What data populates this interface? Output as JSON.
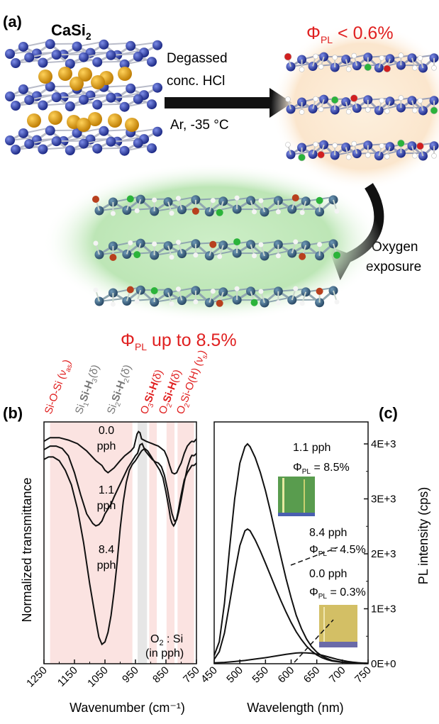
{
  "panel_a": {
    "label": "(a)",
    "compound": "CaSi",
    "compound_sub": "2",
    "arrow1_lines": [
      "Degassed",
      "conc. HCl",
      "Ar, -35 °C"
    ],
    "phi_top_symbol": "Φ",
    "phi_top_sub": "PL",
    "phi_top_text": " < 0.6%",
    "arrow2_lines": [
      "Oxygen",
      "exposure"
    ],
    "phi_bottom_symbol": "Φ",
    "phi_bottom_sub": "PL",
    "phi_bottom_text": " up to 8.5%",
    "colors": {
      "silicon": "#2a3a9a",
      "calcium": "#e8a218",
      "oxygen": "#d11f1f",
      "chlorine": "#2bb33a",
      "hydrogen": "#e0e0e0",
      "red_text": "#e02020",
      "green_glow": "#b9e3b2",
      "peach_glow": "#fbe7cf"
    }
  },
  "panel_b": {
    "label": "(b)",
    "band_labels": [
      {
        "parts": [
          [
            "Si-O-Si (ν",
            "n"
          ],
          [
            "as",
            "sub"
          ],
          [
            ")",
            "n"
          ]
        ],
        "color": "#e02020"
      },
      {
        "parts": [
          [
            "Si",
            "n"
          ],
          [
            "1",
            "sub"
          ],
          [
            "Si-H",
            "b"
          ],
          [
            "3",
            "sub"
          ],
          [
            "(δ)",
            "n"
          ]
        ],
        "color": "#777777"
      },
      {
        "parts": [
          [
            "Si",
            "n"
          ],
          [
            "2",
            "sub"
          ],
          [
            "Si-H",
            "b"
          ],
          [
            "2",
            "sub"
          ],
          [
            "(δ)",
            "n"
          ]
        ],
        "color": "#777777"
      },
      {
        "parts": [
          [
            "O",
            "n"
          ],
          [
            "3",
            "sub"
          ],
          [
            "Si-H",
            "b"
          ],
          [
            "(δ)",
            "n"
          ]
        ],
        "color": "#e02020"
      },
      {
        "parts": [
          [
            "O",
            "n"
          ],
          [
            "2",
            "sub"
          ],
          [
            "Si-H",
            "b"
          ],
          [
            "(δ)",
            "n"
          ]
        ],
        "color": "#e02020"
      },
      {
        "parts": [
          [
            "O",
            "n"
          ],
          [
            "2",
            "sub"
          ],
          [
            "Si-O(H) (ν",
            "n"
          ],
          [
            "s",
            "sub"
          ],
          [
            ")",
            "n"
          ]
        ],
        "color": "#e02020"
      }
    ],
    "curve_labels": [
      {
        "lines": [
          "0.0",
          "pph"
        ]
      },
      {
        "lines": [
          "1.1",
          "pph"
        ]
      },
      {
        "lines": [
          "8.4",
          "pph"
        ]
      }
    ],
    "note_main": "O",
    "note_sub": "2",
    "note_rest": " : Si",
    "note_line2": "(in pph)",
    "colors": {
      "red_band": "#fbe3e1",
      "grey_band": "#e6e6e6"
    }
  },
  "panel_c": {
    "label": "(c)",
    "annotations": [
      {
        "top": "1.1 pph",
        "phi_sym": "Φ",
        "phi_sub": "PL",
        "phi_val": " = 8.5%"
      },
      {
        "top": "8.4 pph",
        "phi_sym": "Φ",
        "phi_sub": "PL",
        "phi_val": " = 4.5%"
      },
      {
        "top": "0.0 pph",
        "phi_sym": "Φ",
        "phi_sub": "PL",
        "phi_val": " = 0.3%"
      }
    ]
  },
  "chart_data": [
    {
      "type": "line",
      "panel": "b",
      "xlabel": "Wavenumber (cm⁻¹)",
      "ylabel": "Normalized transmittance",
      "xlim": [
        1250,
        750
      ],
      "x_reversed": true,
      "xticks": [
        1250,
        1150,
        1050,
        950,
        850,
        750
      ],
      "y_ticks_shown": false,
      "bands_cm1": [
        {
          "range": [
            1230,
            960
          ],
          "color": "red"
        },
        {
          "range": [
            943,
            912
          ],
          "color": "grey"
        },
        {
          "range": [
            905,
            880
          ],
          "color": "red"
        },
        {
          "range": [
            848,
            822
          ],
          "color": "red"
        },
        {
          "range": [
            812,
            758
          ],
          "color": "red"
        }
      ],
      "series": [
        {
          "x": [
            1250,
            1230,
            1200,
            1170,
            1140,
            1110,
            1080,
            1060,
            1050,
            1040,
            1020,
            1000,
            985,
            975,
            965,
            955,
            945,
            940,
            935,
            930,
            915,
            905,
            895,
            885,
            875,
            865,
            855,
            845,
            838,
            830,
            822,
            815,
            808,
            800,
            790,
            780,
            770,
            765,
            758,
            750
          ],
          "y": [
            0.92,
            0.935,
            0.935,
            0.925,
            0.91,
            0.88,
            0.84,
            0.82,
            0.8,
            0.79,
            0.81,
            0.84,
            0.86,
            0.87,
            0.88,
            0.895,
            0.95,
            0.96,
            0.955,
            0.93,
            0.92,
            0.915,
            0.91,
            0.905,
            0.9,
            0.89,
            0.88,
            0.85,
            0.82,
            0.79,
            0.785,
            0.79,
            0.81,
            0.83,
            0.87,
            0.9,
            0.915,
            0.92,
            0.918,
            0.93
          ]
        },
        {
          "x": [
            1250,
            1230,
            1210,
            1190,
            1170,
            1150,
            1130,
            1110,
            1090,
            1080,
            1070,
            1060,
            1050,
            1040,
            1030,
            1020,
            1005,
            990,
            975,
            960,
            950,
            943,
            935,
            928,
            918,
            905,
            895,
            885,
            875,
            865,
            855,
            845,
            838,
            830,
            822,
            815,
            808,
            800,
            790,
            780,
            770,
            765,
            758,
            750
          ],
          "y": [
            0.885,
            0.9,
            0.9,
            0.89,
            0.86,
            0.79,
            0.7,
            0.62,
            0.58,
            0.57,
            0.575,
            0.59,
            0.62,
            0.64,
            0.66,
            0.69,
            0.73,
            0.77,
            0.81,
            0.84,
            0.86,
            0.87,
            0.905,
            0.91,
            0.88,
            0.86,
            0.845,
            0.835,
            0.83,
            0.815,
            0.78,
            0.72,
            0.67,
            0.62,
            0.59,
            0.595,
            0.63,
            0.68,
            0.75,
            0.81,
            0.85,
            0.862,
            0.86,
            0.87
          ]
        },
        {
          "x": [
            1250,
            1235,
            1220,
            1200,
            1180,
            1160,
            1140,
            1120,
            1100,
            1080,
            1070,
            1060,
            1050,
            1040,
            1030,
            1020,
            1010,
            1000,
            990,
            980,
            970,
            960,
            950,
            940,
            930,
            920,
            910,
            900,
            890,
            880,
            870,
            860,
            850,
            840,
            835,
            830,
            825,
            820,
            815,
            810,
            800,
            790,
            780,
            770,
            765,
            758,
            750
          ],
          "y": [
            0.845,
            0.855,
            0.855,
            0.84,
            0.8,
            0.74,
            0.64,
            0.5,
            0.33,
            0.18,
            0.11,
            0.08,
            0.09,
            0.13,
            0.2,
            0.3,
            0.42,
            0.56,
            0.67,
            0.75,
            0.8,
            0.825,
            0.84,
            0.86,
            0.88,
            0.89,
            0.88,
            0.86,
            0.84,
            0.82,
            0.8,
            0.77,
            0.71,
            0.64,
            0.6,
            0.58,
            0.57,
            0.58,
            0.6,
            0.63,
            0.7,
            0.76,
            0.79,
            0.81,
            0.82,
            0.82,
            0.83
          ]
        }
      ]
    },
    {
      "type": "line",
      "panel": "c",
      "xlabel": "Wavelength (nm)",
      "ylabel": "PL intensity (cps)",
      "xlim": [
        450,
        750
      ],
      "ylim": [
        0,
        4400
      ],
      "xticks": [
        450,
        500,
        550,
        600,
        650,
        700,
        750
      ],
      "yticks": [
        0,
        1000,
        2000,
        3000,
        4000
      ],
      "ytick_labels": [
        "0E+0",
        "1E+3",
        "2E+3",
        "3E+3",
        "4E+3"
      ],
      "series": [
        {
          "x": [
            450,
            460,
            470,
            480,
            490,
            500,
            510,
            515,
            520,
            530,
            540,
            550,
            560,
            570,
            580,
            590,
            600,
            610,
            620,
            630,
            640,
            650,
            660,
            670,
            680,
            700,
            720,
            750
          ],
          "y": [
            150,
            400,
            1100,
            2100,
            3000,
            3650,
            3950,
            4000,
            3950,
            3750,
            3480,
            3150,
            2760,
            2350,
            1950,
            1550,
            1200,
            880,
            640,
            450,
            310,
            210,
            140,
            95,
            60,
            30,
            15,
            8
          ]
        },
        {
          "x": [
            450,
            460,
            470,
            480,
            490,
            500,
            510,
            515,
            520,
            530,
            540,
            550,
            560,
            570,
            580,
            590,
            600,
            610,
            620,
            630,
            640,
            650,
            660,
            670,
            680,
            700,
            720,
            750
          ],
          "y": [
            80,
            220,
            560,
            1100,
            1650,
            2150,
            2420,
            2450,
            2420,
            2250,
            2050,
            1830,
            1600,
            1370,
            1150,
            940,
            750,
            580,
            440,
            320,
            230,
            160,
            110,
            75,
            50,
            25,
            12,
            6
          ]
        },
        {
          "x": [
            450,
            470,
            490,
            510,
            530,
            550,
            570,
            590,
            610,
            620,
            630,
            640,
            650,
            660,
            670,
            680,
            690,
            700,
            710,
            720,
            730,
            740,
            750
          ],
          "y": [
            15,
            25,
            40,
            60,
            85,
            110,
            140,
            170,
            195,
            200,
            197,
            190,
            175,
            155,
            130,
            105,
            80,
            60,
            42,
            30,
            20,
            12,
            8
          ]
        }
      ]
    }
  ]
}
